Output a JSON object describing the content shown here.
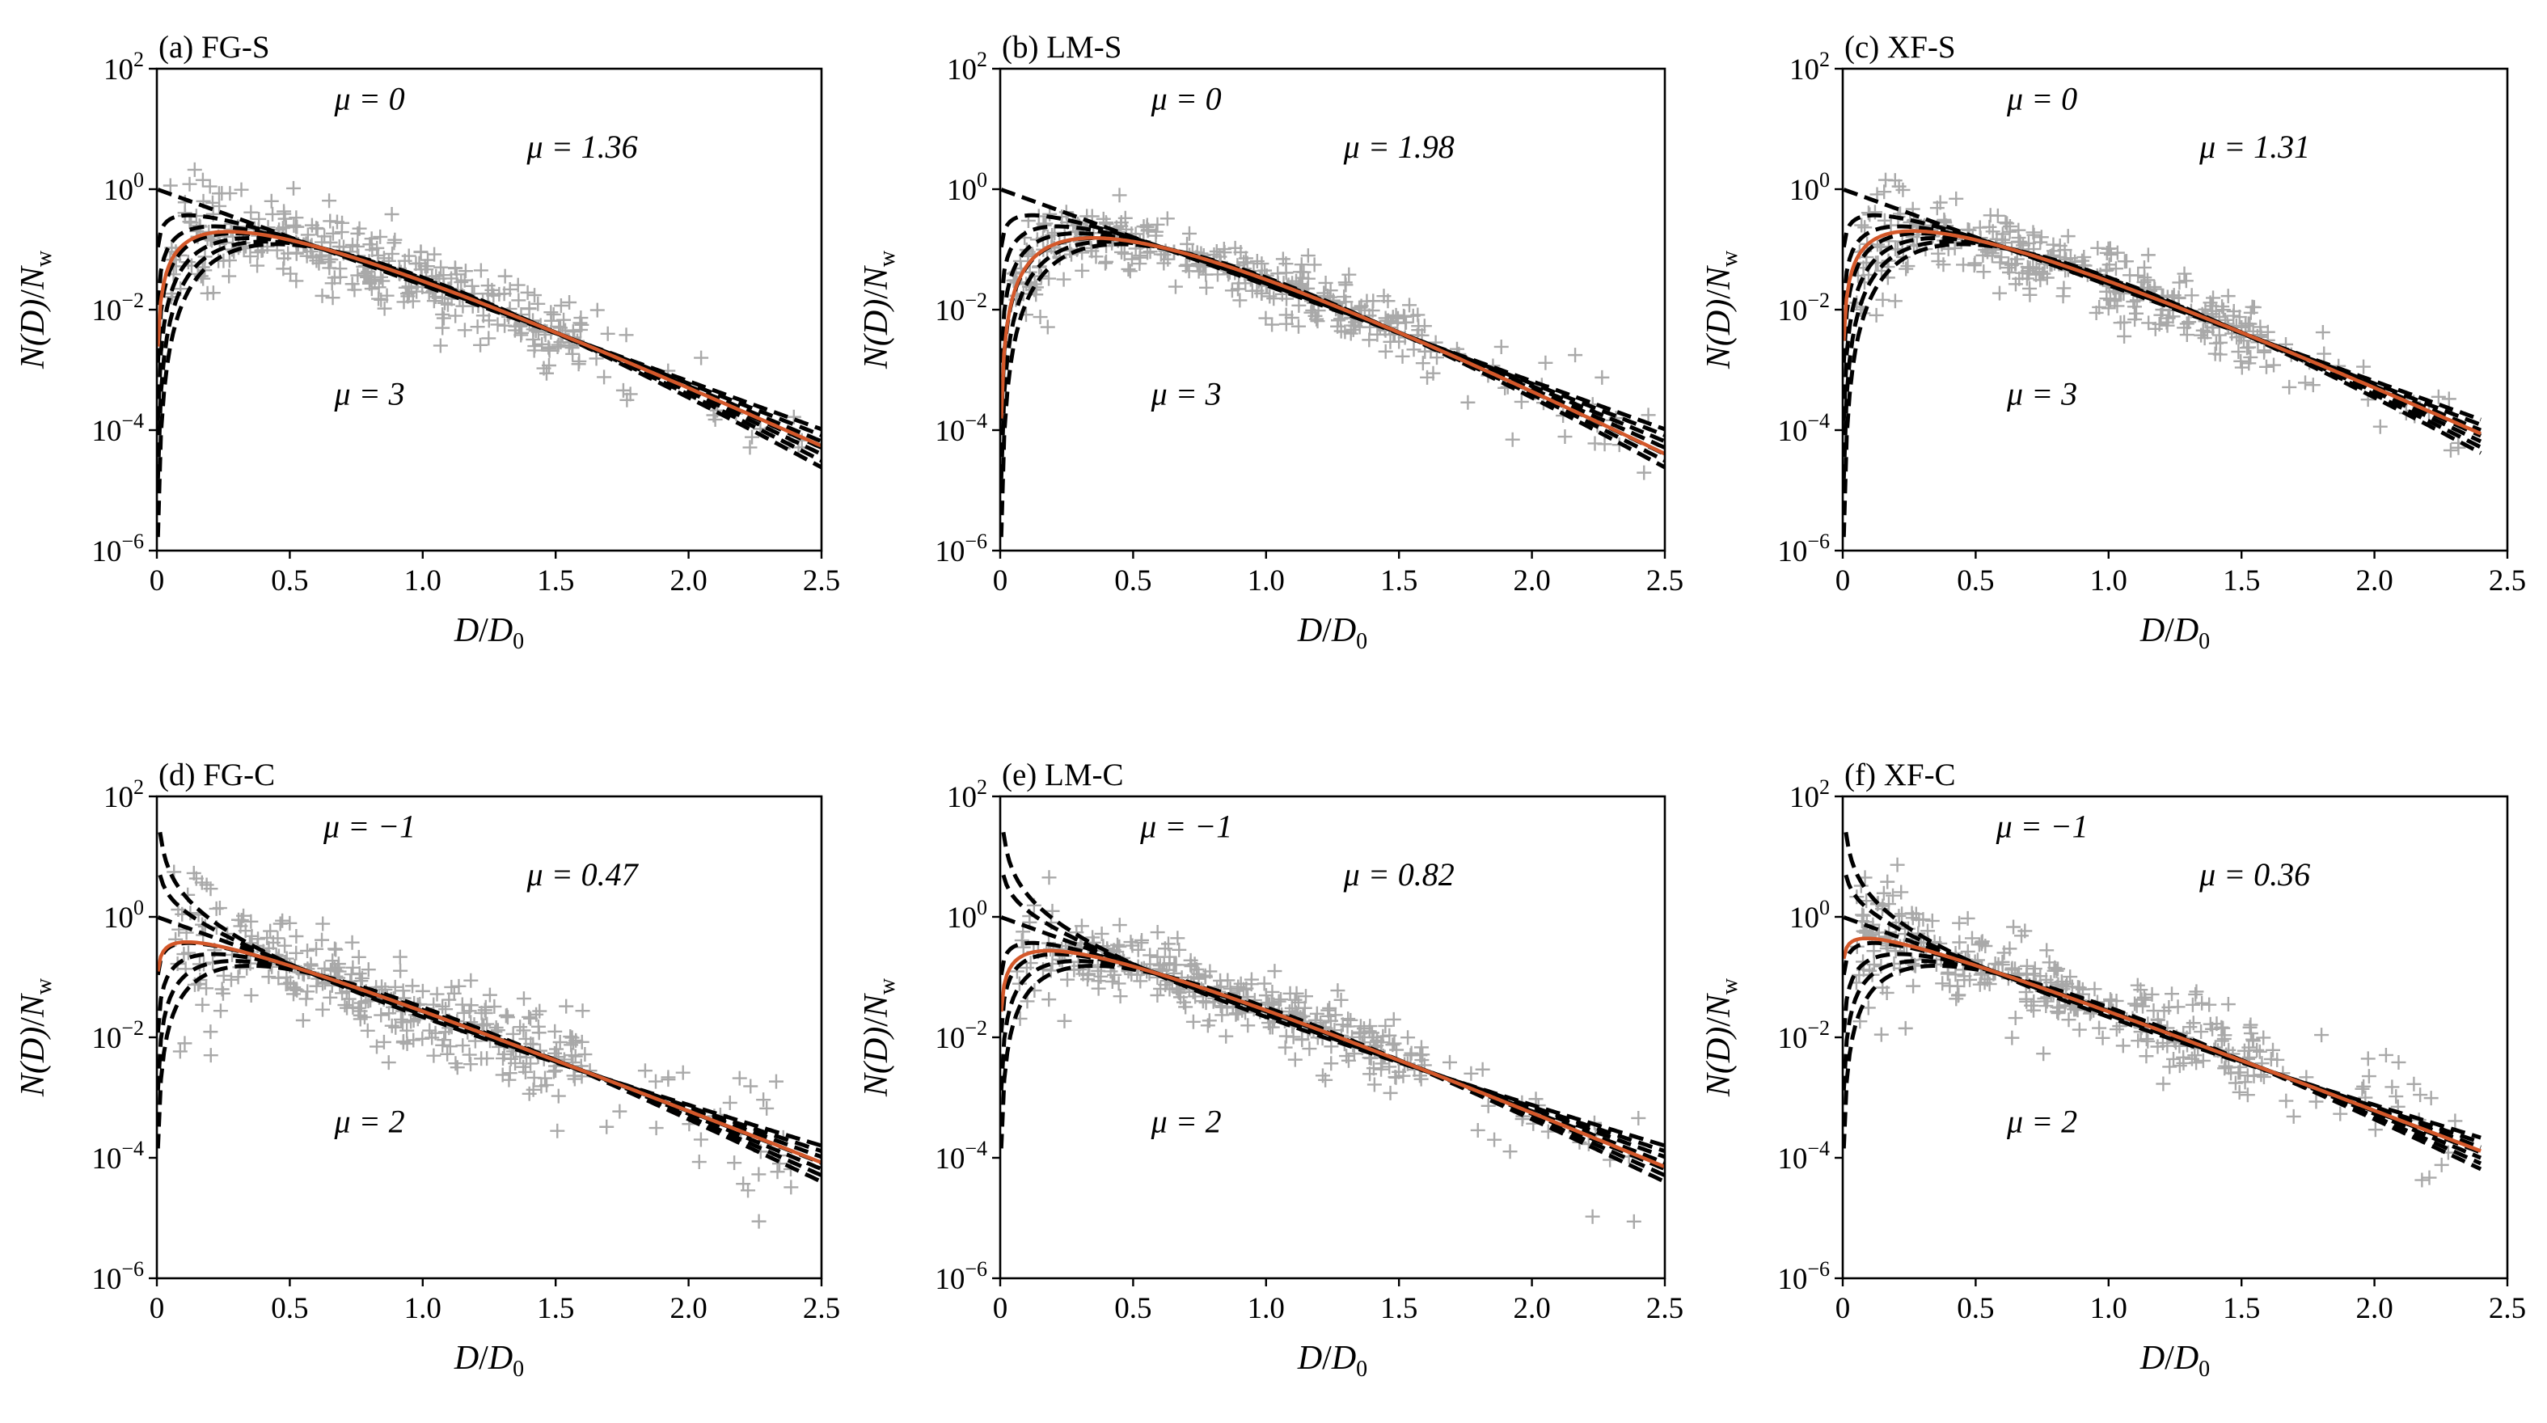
{
  "chart_data": [
    {
      "type": "scatter",
      "title": "(a) FG-S",
      "xlabel": {
        "main": "D",
        "sep": "/",
        "sub_main": "D",
        "sub": "0"
      },
      "ylabel": {
        "main": "N(D)",
        "sep": "/",
        "sub_main": "N",
        "sub": "w"
      },
      "xlim": [
        0,
        2.5
      ],
      "ylim_exponent": [
        -6,
        2
      ],
      "yscale": "log",
      "x_ticks": [
        "0",
        "0.5",
        "1.0",
        "1.5",
        "2.0",
        "2.5"
      ],
      "y_ticks": [
        {
          "base": "10",
          "exp": "2"
        },
        {
          "base": "10",
          "exp": "0"
        },
        {
          "base": "10",
          "exp": "−2"
        },
        {
          "base": "10",
          "exp": "−4"
        },
        {
          "base": "10",
          "exp": "−6"
        }
      ],
      "mu_fit": 1.36,
      "mu_family": [
        0,
        0.5,
        1,
        1.5,
        2,
        2.5,
        3
      ],
      "annotations": [
        {
          "text": "μ = 0",
          "x": 0.8,
          "y": 1.5
        },
        {
          "text": "μ = 1.36",
          "x": 1.6,
          "y": 0.7
        },
        {
          "text": "μ = 3",
          "x": 0.8,
          "y": -3.4
        }
      ],
      "series": [
        {
          "name": "",
          "style": "gray-plus"
        },
        {
          "name": "",
          "style": "black-dashed"
        },
        {
          "name": "",
          "style": "orange-solid"
        }
      ],
      "colors": {
        "observed": "#a9a9a9",
        "family": "#000000",
        "fit": "#d4582a"
      },
      "scatter_seed": 11,
      "scatter_spread": 0.4
    },
    {
      "type": "scatter",
      "title": "(b) LM-S",
      "xlabel": {
        "main": "D",
        "sep": "/",
        "sub_main": "D",
        "sub": "0"
      },
      "ylabel": {
        "main": "N(D)",
        "sep": "/",
        "sub_main": "N",
        "sub": "w"
      },
      "xlim": [
        0,
        2.5
      ],
      "ylim_exponent": [
        -6,
        2
      ],
      "yscale": "log",
      "x_ticks": [
        "0",
        "0.5",
        "1.0",
        "1.5",
        "2.0",
        "2.5"
      ],
      "y_ticks": [
        {
          "base": "10",
          "exp": "2"
        },
        {
          "base": "10",
          "exp": "0"
        },
        {
          "base": "10",
          "exp": "−2"
        },
        {
          "base": "10",
          "exp": "−4"
        },
        {
          "base": "10",
          "exp": "−6"
        }
      ],
      "mu_fit": 1.98,
      "mu_family": [
        0,
        0.5,
        1,
        1.5,
        2,
        2.5,
        3
      ],
      "annotations": [
        {
          "text": "μ = 0",
          "x": 0.7,
          "y": 1.5
        },
        {
          "text": "μ = 1.98",
          "x": 1.5,
          "y": 0.7
        },
        {
          "text": "μ = 3",
          "x": 0.7,
          "y": -3.4
        }
      ],
      "series": [
        {
          "name": "",
          "style": "gray-plus"
        },
        {
          "name": "",
          "style": "black-dashed"
        },
        {
          "name": "",
          "style": "orange-solid"
        }
      ],
      "colors": {
        "observed": "#a9a9a9",
        "family": "#000000",
        "fit": "#d4582a"
      },
      "scatter_seed": 23,
      "scatter_spread": 0.3
    },
    {
      "type": "scatter",
      "title": "(c) XF-S",
      "xlabel": {
        "main": "D",
        "sep": "/",
        "sub_main": "D",
        "sub": "0"
      },
      "ylabel": {
        "main": "N(D)",
        "sep": "/",
        "sub_main": "N",
        "sub": "w"
      },
      "xlim": [
        0,
        2.4
      ],
      "ylim_exponent": [
        -6,
        2
      ],
      "yscale": "log",
      "x_ticks": [
        "0",
        "0.5",
        "1.0",
        "1.5",
        "2.0",
        "2.5"
      ],
      "y_ticks": [
        {
          "base": "10",
          "exp": "2"
        },
        {
          "base": "10",
          "exp": "0"
        },
        {
          "base": "10",
          "exp": "−2"
        },
        {
          "base": "10",
          "exp": "−4"
        },
        {
          "base": "10",
          "exp": "−6"
        }
      ],
      "mu_fit": 1.31,
      "mu_family": [
        0,
        0.5,
        1,
        1.5,
        2,
        2.5,
        3
      ],
      "annotations": [
        {
          "text": "μ = 0",
          "x": 0.75,
          "y": 1.5
        },
        {
          "text": "μ = 1.31",
          "x": 1.55,
          "y": 0.7
        },
        {
          "text": "μ = 3",
          "x": 0.75,
          "y": -3.4
        }
      ],
      "series": [
        {
          "name": "",
          "style": "gray-plus"
        },
        {
          "name": "",
          "style": "black-dashed"
        },
        {
          "name": "",
          "style": "orange-solid"
        }
      ],
      "colors": {
        "observed": "#a9a9a9",
        "family": "#000000",
        "fit": "#d4582a"
      },
      "scatter_seed": 37,
      "scatter_spread": 0.35
    },
    {
      "type": "scatter",
      "title": "(d) FG-C",
      "xlabel": {
        "main": "D",
        "sep": "/",
        "sub_main": "D",
        "sub": "0"
      },
      "ylabel": {
        "main": "N(D)",
        "sep": "/",
        "sub_main": "N",
        "sub": "w"
      },
      "xlim": [
        0,
        2.5
      ],
      "ylim_exponent": [
        -6,
        2
      ],
      "yscale": "log",
      "x_ticks": [
        "0",
        "0.5",
        "1.0",
        "1.5",
        "2.0",
        "2.5"
      ],
      "y_ticks": [
        {
          "base": "10",
          "exp": "2"
        },
        {
          "base": "10",
          "exp": "0"
        },
        {
          "base": "10",
          "exp": "−2"
        },
        {
          "base": "10",
          "exp": "−4"
        },
        {
          "base": "10",
          "exp": "−6"
        }
      ],
      "mu_fit": 0.47,
      "mu_family": [
        -1,
        -0.5,
        0,
        0.5,
        1,
        1.5,
        2
      ],
      "annotations": [
        {
          "text": "μ = −1",
          "x": 0.8,
          "y": 1.5
        },
        {
          "text": "μ = 0.47",
          "x": 1.6,
          "y": 0.7
        },
        {
          "text": "μ = 2",
          "x": 0.8,
          "y": -3.4
        }
      ],
      "series": [
        {
          "name": "",
          "style": "gray-plus"
        },
        {
          "name": "",
          "style": "black-dashed"
        },
        {
          "name": "",
          "style": "orange-solid"
        }
      ],
      "colors": {
        "observed": "#a9a9a9",
        "family": "#000000",
        "fit": "#d4582a"
      },
      "scatter_seed": 41,
      "scatter_spread": 0.45
    },
    {
      "type": "scatter",
      "title": "(e) LM-C",
      "xlabel": {
        "main": "D",
        "sep": "/",
        "sub_main": "D",
        "sub": "0"
      },
      "ylabel": {
        "main": "N(D)",
        "sep": "/",
        "sub_main": "N",
        "sub": "w"
      },
      "xlim": [
        0,
        2.5
      ],
      "ylim_exponent": [
        -6,
        2
      ],
      "yscale": "log",
      "x_ticks": [
        "0",
        "0.5",
        "1.0",
        "1.5",
        "2.0",
        "2.5"
      ],
      "y_ticks": [
        {
          "base": "10",
          "exp": "2"
        },
        {
          "base": "10",
          "exp": "0"
        },
        {
          "base": "10",
          "exp": "−2"
        },
        {
          "base": "10",
          "exp": "−4"
        },
        {
          "base": "10",
          "exp": "−6"
        }
      ],
      "mu_fit": 0.82,
      "mu_family": [
        -1,
        -0.5,
        0,
        0.5,
        1,
        1.5,
        2
      ],
      "annotations": [
        {
          "text": "μ = −1",
          "x": 0.7,
          "y": 1.5
        },
        {
          "text": "μ = 0.82",
          "x": 1.5,
          "y": 0.7
        },
        {
          "text": "μ = 2",
          "x": 0.7,
          "y": -3.4
        }
      ],
      "series": [
        {
          "name": "",
          "style": "gray-plus"
        },
        {
          "name": "",
          "style": "black-dashed"
        },
        {
          "name": "",
          "style": "orange-solid"
        }
      ],
      "colors": {
        "observed": "#a9a9a9",
        "family": "#000000",
        "fit": "#d4582a"
      },
      "scatter_seed": 53,
      "scatter_spread": 0.35
    },
    {
      "type": "scatter",
      "title": "(f) XF-C",
      "xlabel": {
        "main": "D",
        "sep": "/",
        "sub_main": "D",
        "sub": "0"
      },
      "ylabel": {
        "main": "N(D)",
        "sep": "/",
        "sub_main": "N",
        "sub": "w"
      },
      "xlim": [
        0,
        2.4
      ],
      "ylim_exponent": [
        -6,
        2
      ],
      "yscale": "log",
      "x_ticks": [
        "0",
        "0.5",
        "1.0",
        "1.5",
        "2.0",
        "2.5"
      ],
      "y_ticks": [
        {
          "base": "10",
          "exp": "2"
        },
        {
          "base": "10",
          "exp": "0"
        },
        {
          "base": "10",
          "exp": "−2"
        },
        {
          "base": "10",
          "exp": "−4"
        },
        {
          "base": "10",
          "exp": "−6"
        }
      ],
      "mu_fit": 0.36,
      "mu_family": [
        -1,
        -0.5,
        0,
        0.5,
        1,
        1.5,
        2
      ],
      "annotations": [
        {
          "text": "μ = −1",
          "x": 0.75,
          "y": 1.5
        },
        {
          "text": "μ = 0.36",
          "x": 1.55,
          "y": 0.7
        },
        {
          "text": "μ = 2",
          "x": 0.75,
          "y": -3.4
        }
      ],
      "series": [
        {
          "name": "",
          "style": "gray-plus"
        },
        {
          "name": "",
          "style": "black-dashed"
        },
        {
          "name": "",
          "style": "orange-solid"
        }
      ],
      "colors": {
        "observed": "#a9a9a9",
        "family": "#000000",
        "fit": "#d4582a"
      },
      "scatter_seed": 67,
      "scatter_spread": 0.4
    }
  ]
}
